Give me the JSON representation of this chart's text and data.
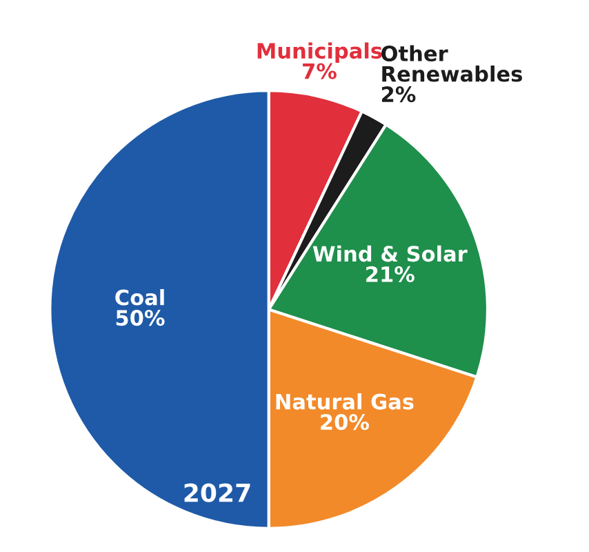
{
  "chart_data": {
    "type": "pie",
    "categories": [
      "Municipals",
      "Other Renewables",
      "Wind & Solar",
      "Natural Gas",
      "Coal"
    ],
    "values": [
      7,
      2,
      21,
      20,
      50
    ],
    "colors": [
      "#e12f3c",
      "#1c1c1c",
      "#1f8f4c",
      "#f28a2a",
      "#1f5aa8"
    ],
    "value_labels": [
      "7%",
      "2%",
      "21%",
      "20%",
      "50%"
    ],
    "annotations": [
      "2027"
    ]
  }
}
